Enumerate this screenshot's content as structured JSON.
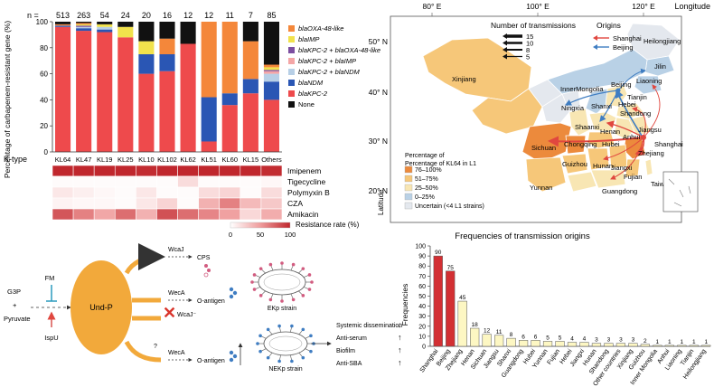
{
  "chart_data": [
    {
      "type": "bar",
      "stacked": true,
      "ylabel": "Percentage of carbapenem-resistant gene (%)",
      "ylim": [
        0,
        100
      ],
      "yticks": [
        0,
        20,
        40,
        60,
        80,
        100
      ],
      "n_label": "n =",
      "xlabel_prefix": "K-type",
      "categories": [
        "KL64",
        "KL47",
        "KL19",
        "KL25",
        "KL10",
        "KL102",
        "KL62",
        "KL51",
        "KL60",
        "KL15",
        "Others"
      ],
      "n": [
        "513",
        "263",
        "54",
        "24",
        "20",
        "16",
        "12",
        "12",
        "11",
        "7",
        "85"
      ],
      "series": [
        {
          "name": "blaKPC-2",
          "color": "#ee4a4c",
          "values": [
            96,
            93,
            92,
            88,
            60,
            62,
            83,
            8,
            36,
            45,
            40
          ]
        },
        {
          "name": "blaNDM",
          "color": "#2a56b4",
          "values": [
            1,
            2,
            2,
            0,
            15,
            13,
            0,
            34,
            9,
            11,
            14
          ]
        },
        {
          "name": "blaKPC-2 + blaNDM",
          "color": "#b7cfe6",
          "values": [
            0,
            1,
            2,
            0,
            0,
            0,
            0,
            0,
            0,
            0,
            6
          ]
        },
        {
          "name": "blaKPC-2 + blaIMP",
          "color": "#f4a6a6",
          "values": [
            0,
            0,
            0,
            0,
            0,
            0,
            0,
            0,
            0,
            0,
            2
          ]
        },
        {
          "name": "blaKPC-2 + blaOXA-48-like",
          "color": "#7c4ea0",
          "values": [
            0,
            1,
            0,
            0,
            0,
            0,
            0,
            0,
            0,
            0,
            1
          ]
        },
        {
          "name": "blaIMP",
          "color": "#f1e24c",
          "values": [
            0,
            1,
            2,
            8,
            10,
            0,
            0,
            0,
            0,
            0,
            2
          ]
        },
        {
          "name": "blaOXA-48-like",
          "color": "#f4873a",
          "values": [
            1,
            1,
            0,
            0,
            0,
            12,
            0,
            58,
            55,
            29,
            2
          ]
        },
        {
          "name": "None",
          "color": "#111111",
          "values": [
            2,
            1,
            2,
            4,
            15,
            13,
            17,
            0,
            0,
            15,
            33
          ]
        }
      ]
    },
    {
      "type": "heatmap",
      "rows": [
        "Imipenem",
        "Tigecycline",
        "Polymyxin B",
        "CZA",
        "Amikacin"
      ],
      "columns": [
        "KL64",
        "KL47",
        "KL19",
        "KL25",
        "KL10",
        "KL102",
        "KL62",
        "KL51",
        "KL60",
        "KL15",
        "Others"
      ],
      "values": [
        [
          100,
          100,
          100,
          100,
          98,
          100,
          100,
          100,
          100,
          100,
          98
        ],
        [
          2,
          2,
          2,
          2,
          2,
          2,
          18,
          2,
          2,
          2,
          4
        ],
        [
          12,
          8,
          4,
          2,
          12,
          2,
          2,
          18,
          22,
          2,
          18
        ],
        [
          6,
          4,
          4,
          2,
          12,
          22,
          2,
          40,
          62,
          35,
          28
        ],
        [
          80,
          62,
          45,
          70,
          40,
          82,
          70,
          60,
          48,
          20,
          42
        ]
      ],
      "colorbar_label": "Resistance rate (%)",
      "colorbar_ticks": [
        "0",
        "50",
        "100"
      ]
    },
    {
      "type": "bar",
      "title": "Frequencies of transmission origins",
      "ylabel": "Frequencies",
      "ylim": [
        0,
        100
      ],
      "yticks": [
        0,
        10,
        20,
        30,
        40,
        50,
        60,
        70,
        80,
        90,
        100
      ],
      "categories": [
        "Shanghai",
        "Beijing",
        "Zhejiang",
        "Henan",
        "Sichuan",
        "Jiangsu",
        "Shanxi",
        "Guangdong",
        "Hubei",
        "Yunnan",
        "Fujian",
        "Hebei",
        "Jiangxi",
        "Hunan",
        "Shandong",
        "Other countries",
        "Xinjiang",
        "Guizhou",
        "Inner Mongolia",
        "Anhui",
        "Liaoning",
        "Tianjin",
        "Heilongjiang"
      ],
      "values": [
        90,
        75,
        45,
        18,
        12,
        11,
        8,
        6,
        6,
        5,
        5,
        4,
        4,
        3,
        3,
        3,
        3,
        2,
        1,
        1,
        1,
        1,
        1
      ],
      "colors": [
        "#d32f33",
        "#d32f33",
        "#fdf7c3",
        "#fdf7c3",
        "#fdf7c3",
        "#fdf7c3",
        "#fdf7c3",
        "#fdf7c3",
        "#fdf7c3",
        "#fdf7c3",
        "#fdf7c3",
        "#fdf7c3",
        "#fdf7c3",
        "#fdf7c3",
        "#fdf7c3",
        "#fdf7c3",
        "#fdf7c3",
        "#fdf7c3",
        "#fdf7c3",
        "#fdf7c3",
        "#fdf7c3",
        "#fdf7c3",
        "#fdf7c3"
      ]
    }
  ],
  "map": {
    "axis_title": "Longitude",
    "latitude_title": "Latitude",
    "lon_ticks": [
      "80° E",
      "100° E",
      "120° E"
    ],
    "lat_ticks": [
      "50° N",
      "40° N",
      "30° N",
      "20° N"
    ],
    "transmissions_title": "Number of transmissions",
    "transmission_counts": [
      "15",
      "10",
      "8",
      "5"
    ],
    "origins_title": "Origins",
    "origins": [
      {
        "name": "Shanghai",
        "color": "#e0473f"
      },
      {
        "name": "Beijing",
        "color": "#3f7dc2"
      }
    ],
    "l1_title": "Percentage of KL64 in L1",
    "l1_bins": [
      {
        "label": "76–100%",
        "color": "#ec8a3c"
      },
      {
        "label": "51–75%",
        "color": "#f6c779"
      },
      {
        "label": "25–50%",
        "color": "#f8e6b3"
      },
      {
        "label": "0–25%",
        "color": "#b9d1e6"
      },
      {
        "label": "Uncertain (<4 L1 strains)",
        "color": "#e4e8ee"
      }
    ],
    "provinces": [
      "Xinjiang",
      "InnerMongolia",
      "Heilongjiang",
      "Jilin",
      "Liaoning",
      "Beijing",
      "Tianjin",
      "Hebei",
      "Shandong",
      "Shanxi",
      "Ningxia",
      "Shaanxi",
      "Henan",
      "Anhui",
      "Jiangsu",
      "Shanghai",
      "Hubei",
      "Zhejiang",
      "Sichuan",
      "Chongqing",
      "Jiangxi",
      "Hunan",
      "Guizhou",
      "Fujian",
      "Taiwan",
      "Yunnan",
      "Guangdong"
    ]
  },
  "diagram": {
    "nodes": {
      "g3p": "G3P",
      "plus": "+",
      "pyruvate": "Pyruvate",
      "fm": "FM",
      "ispu": "IspU",
      "undp": "Und-P",
      "wcaj1": "WcaJ",
      "cps": "CPS",
      "weca1": "WecA",
      "oantigen1": "O-antigen",
      "wcaj_minus": "WcaJ⁻",
      "question": "?",
      "weca2": "WecA",
      "oantigen2": "O-antigen",
      "ekp": "EKp strain",
      "nekp": "NEKp strain"
    },
    "phenotypes": [
      {
        "label": "Systemic dissemination",
        "dir": "↓"
      },
      {
        "label": "Anti-serum",
        "dir": "↑"
      },
      {
        "label": "Biofilm",
        "dir": "↑"
      },
      {
        "label": "Anti-SBA",
        "dir": "↑"
      }
    ]
  }
}
